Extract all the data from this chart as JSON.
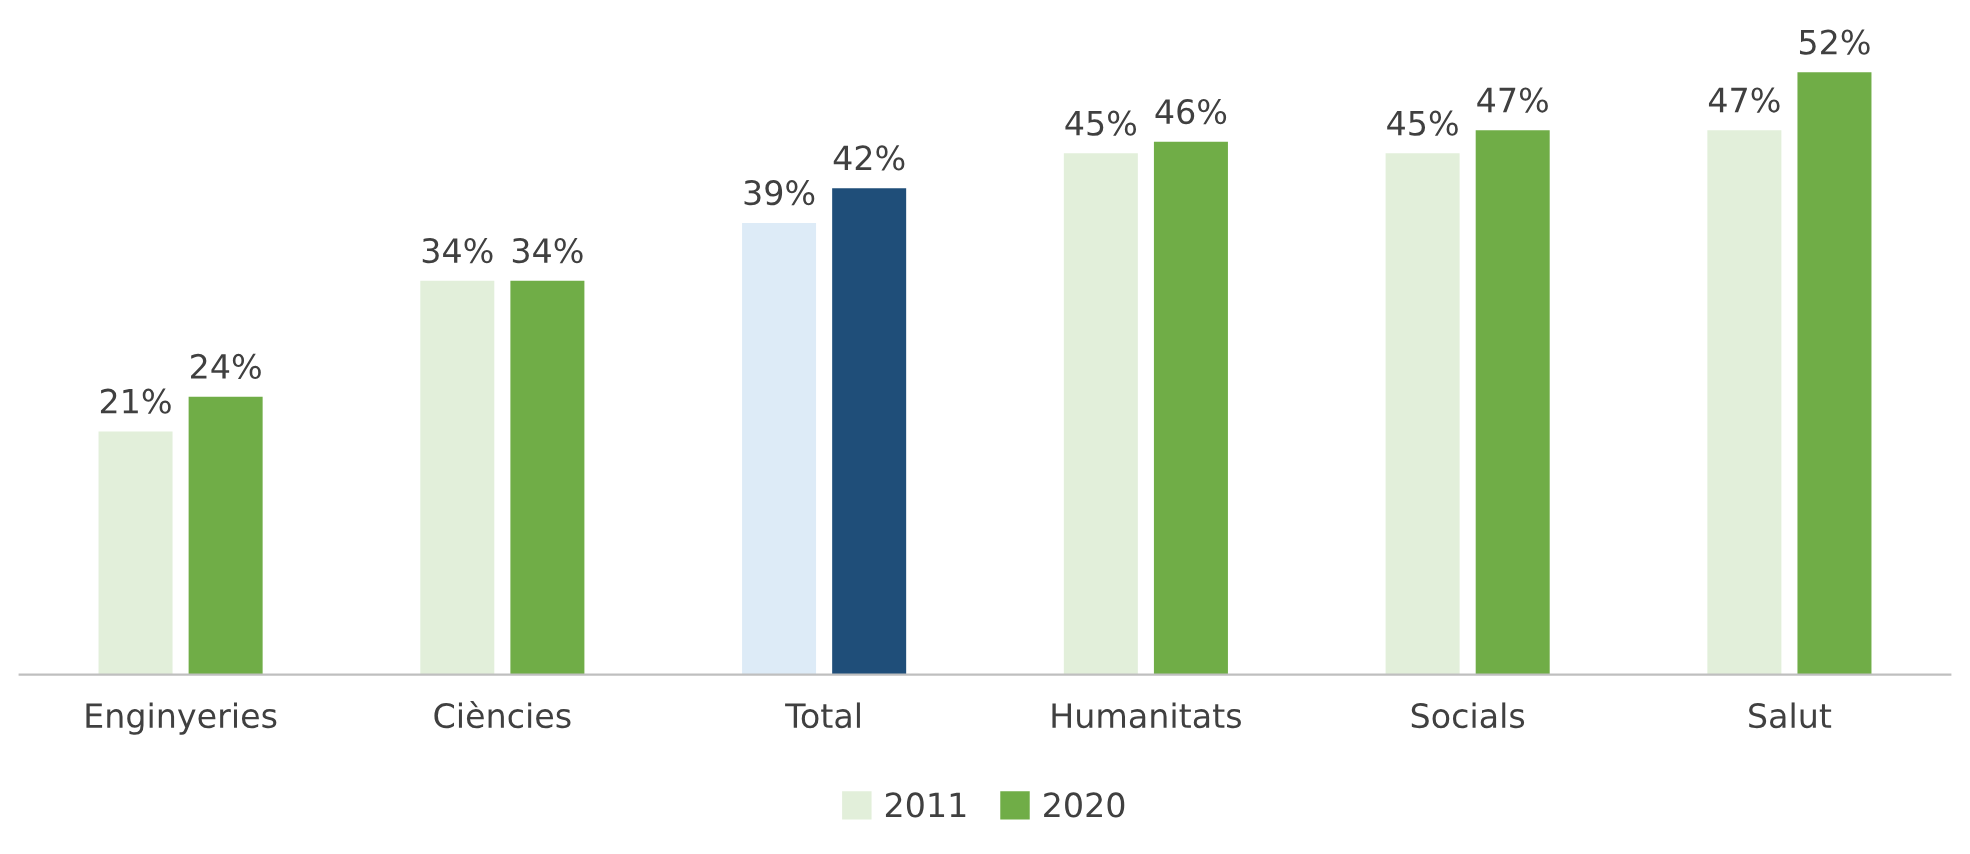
{
  "chart_data": {
    "type": "bar",
    "categories": [
      "Enginyeries",
      "Ciències",
      "Total",
      "Humanitats",
      "Socials",
      "Salut"
    ],
    "series": [
      {
        "name": "2011",
        "color": "#e2efda",
        "colors": [
          "#e2efda",
          "#e2efda",
          "#ddebf7",
          "#e2efda",
          "#e2efda",
          "#e2efda"
        ],
        "values": [
          21,
          34,
          39,
          45,
          45,
          47
        ],
        "value_labels": [
          "21%",
          "34%",
          "39%",
          "45%",
          "45%",
          "47%"
        ]
      },
      {
        "name": "2020",
        "color": "#70ad47",
        "colors": [
          "#70ad47",
          "#70ad47",
          "#1f4e79",
          "#70ad47",
          "#70ad47",
          "#70ad47"
        ],
        "values": [
          24,
          34,
          42,
          46,
          47,
          52
        ],
        "value_labels": [
          "24%",
          "34%",
          "42%",
          "46%",
          "47%",
          "52%"
        ]
      }
    ],
    "legend": "bottom",
    "grid": false
  }
}
